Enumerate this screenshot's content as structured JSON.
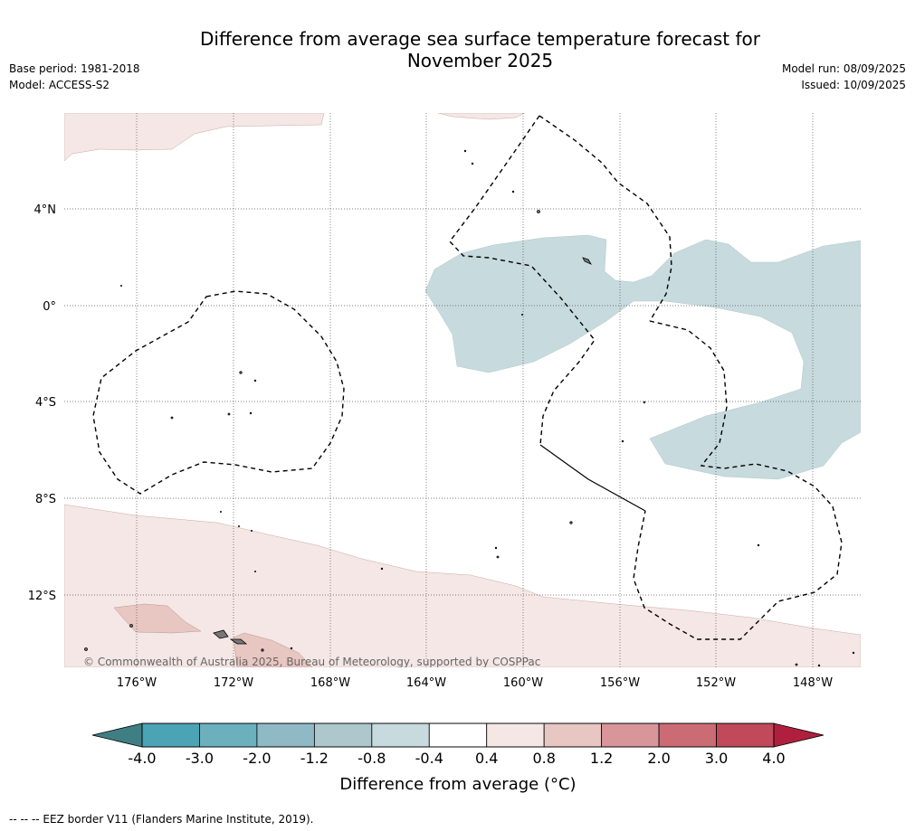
{
  "header": {
    "title_line1": "Difference from average sea surface temperature forecast for",
    "title_line2": "November 2025",
    "base_period": "Base period: 1981-2018",
    "model": "Model: ACCESS-S2",
    "model_run": "Model run: 08/09/2025",
    "issued": "Issued: 10/09/2025"
  },
  "map": {
    "copyright": "© Commonwealth of Australia 2025, Bureau of Meteorology, supported by COSPPac",
    "lat_labels": [
      "4°N",
      "0°",
      "4°S",
      "8°S",
      "12°S"
    ],
    "lon_labels": [
      "176°W",
      "172°W",
      "168°W",
      "164°W",
      "160°W",
      "156°W",
      "152°W",
      "148°W"
    ]
  },
  "colorbar": {
    "title": "Difference from average (°C)",
    "ticks": [
      "-4.0",
      "-3.0",
      "-2.0",
      "-1.2",
      "-0.8",
      "-0.4",
      "0.4",
      "0.8",
      "1.2",
      "2.0",
      "3.0",
      "4.0"
    ],
    "colors": [
      "#3f7f84",
      "#4aa4b5",
      "#6cb0be",
      "#8fbac5",
      "#aec7cd",
      "#c7dadd",
      "#ffffff",
      "#f4e7e5",
      "#e8c6c1",
      "#d8959a",
      "#cb6b74",
      "#c04a59",
      "#b0203e"
    ]
  },
  "footnote": "-- -- -- EEZ border V11 (Flanders Marine Institute, 2019)."
}
